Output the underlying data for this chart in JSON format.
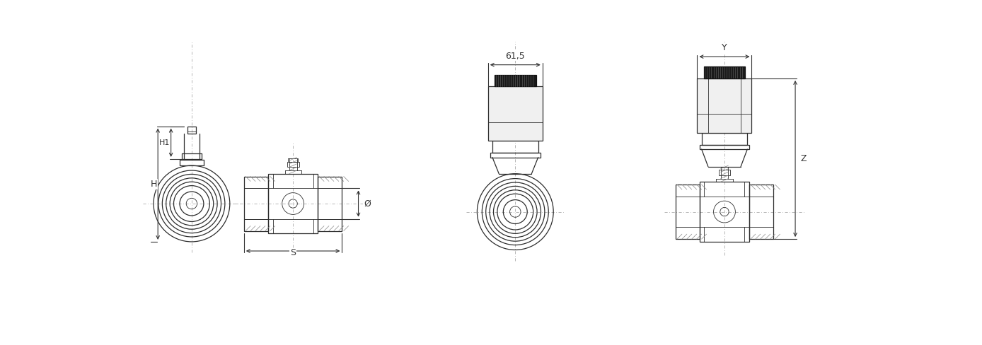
{
  "bg_color": "#ffffff",
  "line_color": "#2d2d2d",
  "dark_color": "#111111",
  "dim_color": "#333333",
  "gray_light": "#f0f0f0",
  "gray_mid": "#d0d0d0",
  "cable_color": "#1a1a1a",
  "centerline_color": "#aaaaaa",
  "fig_width": 13.88,
  "fig_height": 4.88,
  "labels": {
    "H1": "H1",
    "H": "H",
    "S": "S",
    "phi": "Ø",
    "dim615": "61,5",
    "Y": "Y",
    "Z": "Z"
  }
}
